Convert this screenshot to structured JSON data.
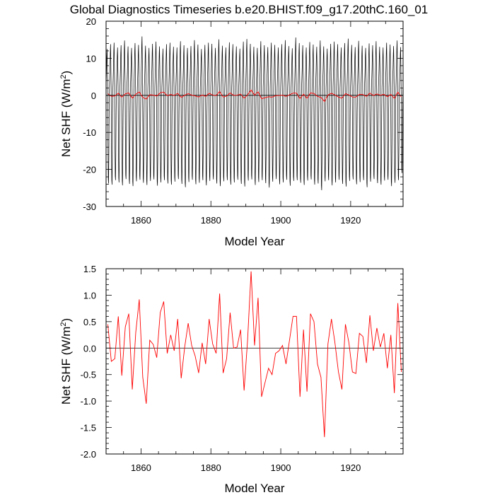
{
  "title": "Global Diagnostics Timeseries b.e20.BHIST.f09_g17.20thC.160_01",
  "chart_data": [
    {
      "type": "line",
      "ylabel": "Net SHF (W/m²)",
      "ylabel_main": "Net SHF (W/m",
      "ylabel_sup": "2",
      "ylabel_tail": ")",
      "xlabel": "Model Year",
      "xlim": [
        1850,
        1935
      ],
      "ylim": [
        -30,
        20
      ],
      "xticks": [
        1860,
        1880,
        1900,
        1920
      ],
      "xtick_labels": [
        "1860",
        "1880",
        "1900",
        "1920"
      ],
      "yticks": [
        -30,
        -20,
        -10,
        0,
        10,
        20
      ],
      "ytick_labels": [
        "-30",
        "-20",
        "-10",
        "0",
        "10",
        "20"
      ],
      "zero_line": true,
      "series": [
        {
          "color": "#000000",
          "resolution": "monthly",
          "start_year": 1850,
          "n_years": 85,
          "annual_max": [
            12.5,
            13.8,
            14.2,
            12.9,
            13.5,
            14.8,
            13.2,
            12.8,
            14.1,
            13.6,
            15.9,
            13.4,
            12.8,
            13.9,
            14.5,
            13.2,
            12.6,
            13.8,
            14.2,
            13.1,
            12.9,
            14.6,
            13.5,
            12.8,
            13.3,
            14.9,
            13.7,
            12.5,
            13.6,
            14.2,
            13.9,
            12.8,
            15.1,
            13.4,
            12.9,
            14.3,
            13.8,
            13.2,
            12.6,
            14.5,
            15.2,
            13.9,
            13.1,
            12.8,
            14.6,
            13.5,
            13.0,
            14.2,
            13.6,
            12.9,
            13.8,
            14.9,
            13.3,
            12.7,
            15.6,
            14.1,
            13.5,
            12.9,
            14.4,
            13.7,
            13.1,
            14.8,
            13.2,
            12.6,
            13.9,
            14.5,
            13.8,
            12.9,
            14.1,
            15.3,
            13.6,
            13.0,
            14.7,
            13.4,
            12.8,
            14.0,
            13.5,
            14.6,
            13.1,
            12.9,
            14.2,
            13.7,
            13.3,
            14.8,
            13.0
          ],
          "annual_min": [
            -23.8,
            -24.1,
            -22.9,
            -23.5,
            -24.3,
            -22.6,
            -23.9,
            -24.5,
            -23.2,
            -22.8,
            -23.6,
            -24.2,
            -23.1,
            -22.7,
            -24.4,
            -23.5,
            -22.9,
            -23.8,
            -24.1,
            -23.3,
            -22.6,
            -23.9,
            -24.8,
            -23.4,
            -22.8,
            -24.0,
            -23.6,
            -22.9,
            -24.3,
            -23.1,
            -22.7,
            -23.8,
            -24.5,
            -23.2,
            -22.9,
            -24.1,
            -23.5,
            -22.8,
            -23.9,
            -24.6,
            -23.0,
            -22.7,
            -24.2,
            -23.4,
            -22.9,
            -23.7,
            -24.9,
            -23.3,
            -22.6,
            -24.0,
            -23.5,
            -22.8,
            -24.4,
            -23.1,
            -22.9,
            -23.6,
            -24.2,
            -23.0,
            -22.7,
            -24.1,
            -23.8,
            -25.6,
            -23.2,
            -22.9,
            -24.3,
            -23.5,
            -22.8,
            -23.9,
            -24.6,
            -23.1,
            -22.7,
            -24.0,
            -23.4,
            -22.9,
            -24.8,
            -23.3,
            -22.6,
            -23.7,
            -24.1,
            -23.0,
            -22.8,
            -24.5,
            -23.6,
            -22.9,
            -21.0
          ]
        },
        {
          "color": "#ff0000",
          "resolution": "annual",
          "x": [
            1850,
            1851,
            1852,
            1853,
            1854,
            1855,
            1856,
            1857,
            1858,
            1859,
            1860,
            1861,
            1862,
            1863,
            1864,
            1865,
            1866,
            1867,
            1868,
            1869,
            1870,
            1871,
            1872,
            1873,
            1874,
            1875,
            1876,
            1877,
            1878,
            1879,
            1880,
            1881,
            1882,
            1883,
            1884,
            1885,
            1886,
            1887,
            1888,
            1889,
            1890,
            1891,
            1892,
            1893,
            1894,
            1895,
            1896,
            1897,
            1898,
            1899,
            1900,
            1901,
            1902,
            1903,
            1904,
            1905,
            1906,
            1907,
            1908,
            1909,
            1910,
            1911,
            1912,
            1913,
            1914,
            1915,
            1916,
            1917,
            1918,
            1919,
            1920,
            1921,
            1922,
            1923,
            1924,
            1925,
            1926,
            1927,
            1928,
            1929,
            1930,
            1931,
            1932,
            1933,
            1934
          ],
          "values": [
            0.45,
            -0.25,
            -0.2,
            0.6,
            -0.52,
            0.4,
            0.65,
            -0.78,
            0.3,
            0.92,
            -0.55,
            -1.05,
            0.15,
            0.07,
            -0.18,
            0.67,
            0.88,
            -0.1,
            0.25,
            -0.05,
            0.55,
            -0.57,
            0.02,
            0.47,
            0.05,
            -0.15,
            -0.47,
            0.1,
            -0.3,
            0.55,
            0.08,
            -0.1,
            1.03,
            -0.47,
            -0.2,
            0.67,
            0.0,
            0.02,
            0.35,
            -0.8,
            0.15,
            1.45,
            0.05,
            0.95,
            -0.92,
            -0.65,
            -0.38,
            -0.5,
            -0.1,
            -0.05,
            0.05,
            -0.3,
            0.15,
            0.6,
            0.6,
            -0.92,
            0.35,
            -0.82,
            0.65,
            0.5,
            -0.3,
            -0.55,
            -1.68,
            0.08,
            0.55,
            0.1,
            -0.45,
            -0.78,
            0.45,
            0.1,
            -0.45,
            -0.48,
            0.28,
            0.22,
            -0.28,
            0.62,
            -0.05,
            0.38,
            0.02,
            0.28,
            -0.38,
            0.25,
            -0.85,
            0.85,
            -0.45
          ]
        }
      ]
    },
    {
      "type": "line",
      "ylabel": "Net SHF (W/m²)",
      "ylabel_main": "Net SHF (W/m",
      "ylabel_sup": "2",
      "ylabel_tail": ")",
      "xlabel": "Model Year",
      "xlim": [
        1850,
        1935
      ],
      "ylim": [
        -2.0,
        1.5
      ],
      "xticks": [
        1860,
        1880,
        1900,
        1920
      ],
      "xtick_labels": [
        "1860",
        "1880",
        "1900",
        "1920"
      ],
      "yticks": [
        -2.0,
        -1.5,
        -1.0,
        -0.5,
        0.0,
        0.5,
        1.0,
        1.5
      ],
      "ytick_labels": [
        "-2.0",
        "-1.5",
        "-1.0",
        "-0.5",
        "0.0",
        "0.5",
        "1.0",
        "1.5"
      ],
      "zero_line": true,
      "series": [
        {
          "color": "#ff0000",
          "resolution": "annual",
          "x": [
            1850,
            1851,
            1852,
            1853,
            1854,
            1855,
            1856,
            1857,
            1858,
            1859,
            1860,
            1861,
            1862,
            1863,
            1864,
            1865,
            1866,
            1867,
            1868,
            1869,
            1870,
            1871,
            1872,
            1873,
            1874,
            1875,
            1876,
            1877,
            1878,
            1879,
            1880,
            1881,
            1882,
            1883,
            1884,
            1885,
            1886,
            1887,
            1888,
            1889,
            1890,
            1891,
            1892,
            1893,
            1894,
            1895,
            1896,
            1897,
            1898,
            1899,
            1900,
            1901,
            1902,
            1903,
            1904,
            1905,
            1906,
            1907,
            1908,
            1909,
            1910,
            1911,
            1912,
            1913,
            1914,
            1915,
            1916,
            1917,
            1918,
            1919,
            1920,
            1921,
            1922,
            1923,
            1924,
            1925,
            1926,
            1927,
            1928,
            1929,
            1930,
            1931,
            1932,
            1933,
            1934
          ],
          "values": [
            0.45,
            -0.25,
            -0.2,
            0.6,
            -0.52,
            0.4,
            0.65,
            -0.78,
            0.3,
            0.92,
            -0.55,
            -1.05,
            0.15,
            0.07,
            -0.18,
            0.67,
            0.88,
            -0.1,
            0.25,
            -0.05,
            0.55,
            -0.57,
            0.02,
            0.47,
            0.05,
            -0.15,
            -0.47,
            0.1,
            -0.3,
            0.55,
            0.08,
            -0.1,
            1.03,
            -0.47,
            -0.2,
            0.67,
            0.0,
            0.02,
            0.35,
            -0.8,
            0.15,
            1.45,
            0.05,
            0.95,
            -0.92,
            -0.65,
            -0.38,
            -0.5,
            -0.1,
            -0.05,
            0.05,
            -0.3,
            0.15,
            0.6,
            0.6,
            -0.92,
            0.35,
            -0.82,
            0.65,
            0.5,
            -0.3,
            -0.55,
            -1.68,
            0.08,
            0.55,
            0.1,
            -0.45,
            -0.78,
            0.45,
            0.1,
            -0.45,
            -0.48,
            0.28,
            0.22,
            -0.28,
            0.62,
            -0.05,
            0.38,
            0.02,
            0.28,
            -0.38,
            0.25,
            -0.85,
            0.85,
            -0.45
          ]
        }
      ]
    }
  ]
}
